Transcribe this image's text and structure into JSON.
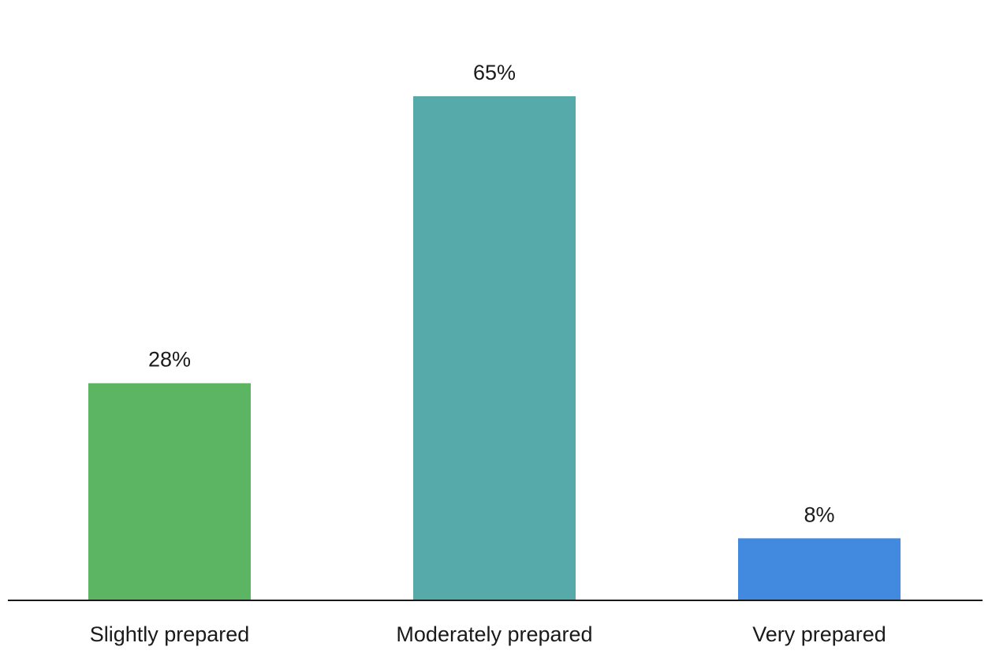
{
  "chart_data": {
    "type": "bar",
    "categories": [
      "Slightly prepared",
      "Moderately prepared",
      "Very prepared"
    ],
    "values": [
      28,
      65,
      8
    ],
    "value_labels": [
      "28%",
      "65%",
      "8%"
    ],
    "colors": [
      "#5cb562",
      "#56aaaa",
      "#418adf"
    ],
    "axis_color": "#1a1a1a",
    "title": "",
    "xlabel": "",
    "ylabel": "",
    "ylim": [
      0,
      70
    ],
    "grid": false,
    "legend": "none"
  }
}
